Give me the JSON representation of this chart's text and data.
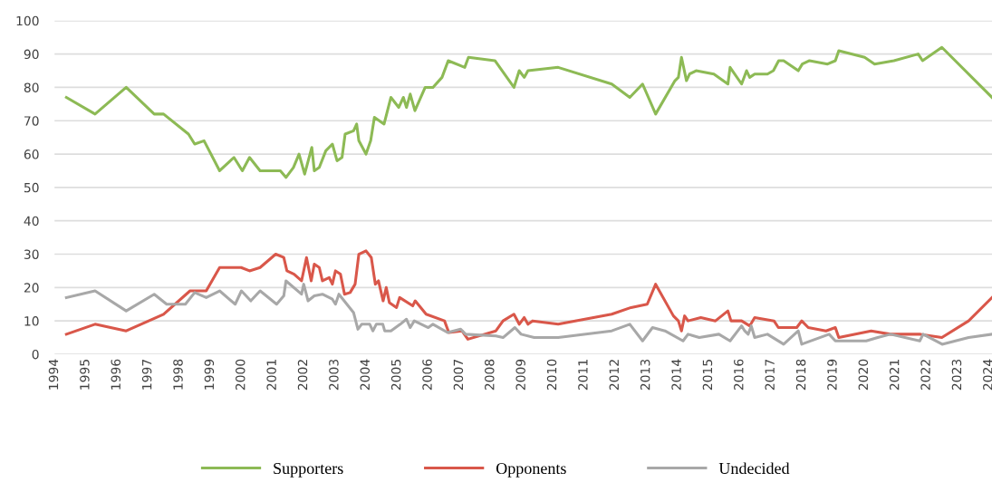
{
  "chart_data": {
    "type": "line",
    "xlim": [
      1994,
      2024.1
    ],
    "xticks": [
      1994,
      1995,
      1996,
      1997,
      1998,
      1999,
      2000,
      2001,
      2002,
      2003,
      2004,
      2005,
      2006,
      2007,
      2008,
      2009,
      2010,
      2011,
      2012,
      2013,
      2014,
      2015,
      2016,
      2017,
      2018,
      2019,
      2020,
      2021,
      2022,
      2023,
      2024
    ],
    "ylim": [
      0,
      100
    ],
    "yticks": [
      0,
      10,
      20,
      30,
      40,
      50,
      60,
      70,
      80,
      90,
      100
    ],
    "grid": "y",
    "legend": "bottom",
    "marker": "none",
    "line_style": "solid",
    "series": [
      {
        "name": "Supporters",
        "color": "#8dba55",
        "x": [
          1994.38,
          1995.3,
          1996.3,
          1997.2,
          1997.5,
          1998.3,
          1998.5,
          1998.8,
          1999.3,
          1999.76,
          2000.03,
          2000.26,
          2000.6,
          2001.25,
          2001.43,
          2001.67,
          2001.85,
          2002.03,
          2002.26,
          2002.34,
          2002.5,
          2002.71,
          2002.92,
          2003.07,
          2003.23,
          2003.33,
          2003.6,
          2003.7,
          2003.77,
          2004.0,
          2004.15,
          2004.27,
          2004.58,
          2004.8,
          2005.05,
          2005.2,
          2005.3,
          2005.42,
          2005.57,
          2005.9,
          2006.15,
          2006.44,
          2006.64,
          2007.17,
          2007.29,
          2008.14,
          2008.75,
          2008.92,
          2009.08,
          2009.2,
          2010.17,
          2011.89,
          2012.47,
          2012.88,
          2013.3,
          2013.92,
          2014.03,
          2014.13,
          2014.29,
          2014.39,
          2014.6,
          2015.17,
          2015.62,
          2015.69,
          2016.06,
          2016.22,
          2016.32,
          2016.48,
          2016.89,
          2017.08,
          2017.25,
          2017.41,
          2017.88,
          2018.01,
          2018.24,
          2018.82,
          2019.07,
          2019.18,
          2020.01,
          2020.33,
          2020.95,
          2021.73,
          2021.87,
          2022.49,
          2024.1
        ],
        "values": [
          77,
          72,
          80,
          72,
          72,
          66,
          63,
          64,
          55,
          59,
          55,
          59,
          55,
          55,
          53,
          56,
          60,
          54,
          62,
          55,
          56,
          61,
          63,
          58,
          59,
          66,
          67,
          69,
          64,
          60,
          64,
          71,
          69,
          77,
          74,
          77,
          74,
          78,
          73,
          80,
          80,
          83,
          88,
          86,
          89,
          88,
          80,
          85,
          83,
          85,
          86,
          81,
          77,
          81,
          72,
          82,
          83,
          89,
          82,
          84,
          85,
          84,
          81,
          86,
          81,
          85,
          83,
          84,
          84,
          85,
          88,
          88,
          85,
          87,
          88,
          87,
          88,
          91,
          89,
          87,
          88,
          90,
          88,
          92,
          77
        ]
      },
      {
        "name": "Opponents",
        "color": "#d9574a",
        "x": [
          1994.38,
          1995.3,
          1996.3,
          1997.5,
          1998.35,
          1998.87,
          1999.3,
          1999.99,
          2000.26,
          2000.6,
          2001.1,
          2001.36,
          2001.46,
          2001.69,
          2001.93,
          2002.09,
          2002.24,
          2002.34,
          2002.5,
          2002.6,
          2002.82,
          2002.92,
          2003.02,
          2003.18,
          2003.31,
          2003.49,
          2003.65,
          2003.77,
          2004.0,
          2004.17,
          2004.3,
          2004.4,
          2004.55,
          2004.65,
          2004.75,
          2004.98,
          2005.08,
          2005.5,
          2005.58,
          2005.93,
          2006.52,
          2006.66,
          2007.08,
          2007.27,
          2008.17,
          2008.4,
          2008.75,
          2008.92,
          2009.08,
          2009.2,
          2009.35,
          2010.17,
          2011.89,
          2012.51,
          2013.03,
          2013.3,
          2013.87,
          2014.03,
          2014.13,
          2014.23,
          2014.34,
          2014.75,
          2015.22,
          2015.62,
          2015.72,
          2016.06,
          2016.32,
          2016.48,
          2017.1,
          2017.24,
          2017.83,
          2017.99,
          2018.2,
          2018.77,
          2019.07,
          2019.18,
          2020.22,
          2020.84,
          2021.78,
          2022.49,
          2023.35,
          2024.1
        ],
        "values": [
          6,
          9,
          7,
          12,
          19,
          19,
          26,
          26,
          25,
          26,
          30,
          29,
          25,
          24,
          22,
          29,
          22,
          27,
          26,
          22,
          23,
          21,
          25,
          24,
          18,
          18.5,
          21,
          30,
          31,
          29,
          21,
          22,
          16,
          20,
          15.5,
          14,
          17,
          14.5,
          16,
          12,
          10,
          6.5,
          7,
          4.5,
          7,
          10,
          12,
          9,
          11,
          9,
          10,
          9,
          12,
          14,
          15,
          21,
          11.5,
          10,
          7,
          11.5,
          10,
          11,
          10,
          13,
          10,
          10,
          8.5,
          11,
          10,
          8,
          8,
          10,
          8,
          7,
          8,
          5,
          7,
          6,
          6,
          5,
          10,
          17
        ]
      },
      {
        "name": "Undecided",
        "color": "#a8a8a8",
        "x": [
          1994.38,
          1995.3,
          1996.3,
          1997.2,
          1997.6,
          1998.2,
          1998.5,
          1998.87,
          1999.3,
          1999.8,
          2000.0,
          2000.3,
          2000.6,
          2001.13,
          2001.36,
          2001.43,
          2001.93,
          2002.0,
          2002.14,
          2002.34,
          2002.6,
          2002.92,
          2003.02,
          2003.13,
          2003.6,
          2003.74,
          2003.86,
          2004.12,
          2004.22,
          2004.33,
          2004.54,
          2004.6,
          2004.8,
          2005.1,
          2005.3,
          2005.42,
          2005.55,
          2006.0,
          2006.15,
          2006.62,
          2007.04,
          2007.2,
          2008.17,
          2008.4,
          2008.78,
          2008.98,
          2009.4,
          2010.17,
          2011.89,
          2012.47,
          2012.88,
          2013.2,
          2013.6,
          2014.18,
          2014.34,
          2014.7,
          2015.33,
          2015.69,
          2016.06,
          2016.16,
          2016.27,
          2016.37,
          2016.48,
          2016.89,
          2017.41,
          2017.88,
          2017.99,
          2018.87,
          2019.07,
          2020.06,
          2020.43,
          2020.84,
          2021.78,
          2021.89,
          2022.5,
          2023.35,
          2024.1
        ],
        "values": [
          17,
          19,
          13,
          18,
          15,
          15,
          18.5,
          17,
          19,
          15,
          19,
          16,
          19,
          15,
          17.5,
          22,
          18,
          21,
          16,
          17.5,
          18,
          16.5,
          15,
          18,
          12.5,
          7.5,
          9,
          9,
          7,
          9,
          9,
          7,
          7,
          9,
          10.5,
          8,
          10,
          8,
          9,
          6.5,
          7.5,
          6,
          5.5,
          5,
          8,
          6,
          5,
          5,
          7,
          9,
          4,
          8,
          7,
          4,
          6,
          5,
          6,
          4,
          8.5,
          7,
          6,
          8.5,
          5,
          6,
          3,
          7,
          3,
          6,
          4,
          4,
          5,
          6,
          4,
          6,
          3,
          5,
          6
        ]
      }
    ]
  }
}
